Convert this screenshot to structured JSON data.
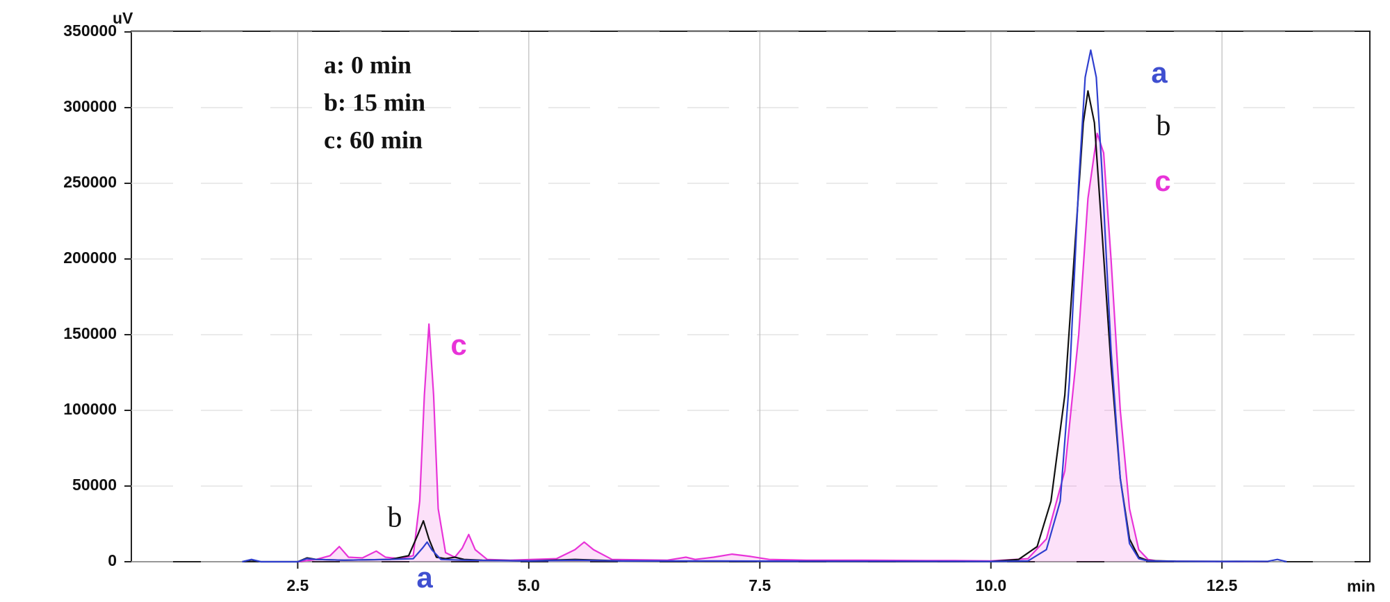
{
  "chart_data": {
    "type": "line",
    "x_label": "min",
    "y_label": "uV",
    "xlim": [
      0.7,
      14.1
    ],
    "ylim": [
      0,
      350000
    ],
    "xticks": [
      2.5,
      {
        "value": 5,
        "label": "5.0"
      },
      7.5,
      {
        "value": 10,
        "label": "10.0"
      },
      12.5
    ],
    "yticks": [
      0,
      50000,
      100000,
      150000,
      200000,
      250000,
      300000,
      350000
    ],
    "grid": true,
    "series": [
      {
        "name": "a: 0 min",
        "color": "#2f3fcf",
        "x": [
          1.9,
          2.0,
          2.1,
          2.5,
          2.6,
          2.7,
          3.0,
          3.5,
          3.75,
          3.85,
          3.9,
          3.95,
          4.05,
          4.3,
          5.0,
          5.5,
          6.0,
          7.0,
          8.0,
          9.0,
          10.0,
          10.4,
          10.6,
          10.75,
          10.85,
          10.95,
          11.02,
          11.08,
          11.14,
          11.2,
          11.3,
          11.4,
          11.5,
          11.6,
          11.7,
          12.0,
          12.5,
          13.0,
          13.1,
          13.2
        ],
        "values": [
          0,
          1500,
          0,
          0,
          2000,
          1500,
          1000,
          1500,
          2000,
          9000,
          13000,
          8000,
          1500,
          1000,
          500,
          1000,
          500,
          500,
          300,
          300,
          200,
          500,
          8000,
          40000,
          120000,
          250000,
          320000,
          338000,
          320000,
          260000,
          140000,
          55000,
          12000,
          2000,
          500,
          300,
          200,
          300,
          1500,
          0
        ]
      },
      {
        "name": "b: 15 min",
        "color": "#111111",
        "x": [
          1.9,
          2.0,
          2.1,
          2.5,
          2.6,
          2.7,
          3.0,
          3.5,
          3.7,
          3.8,
          3.86,
          3.92,
          4.0,
          4.1,
          4.2,
          4.3,
          4.5,
          5.0,
          5.5,
          6.0,
          7.0,
          8.0,
          9.0,
          10.0,
          10.3,
          10.5,
          10.65,
          10.8,
          10.9,
          11.0,
          11.05,
          11.12,
          11.2,
          11.3,
          11.4,
          11.5,
          11.6,
          11.7,
          12.0,
          13.0
        ],
        "values": [
          0,
          1200,
          0,
          0,
          2500,
          1500,
          1000,
          1500,
          4000,
          18000,
          27000,
          15000,
          3000,
          2000,
          3000,
          1500,
          1000,
          500,
          1500,
          500,
          300,
          300,
          200,
          200,
          1500,
          10000,
          40000,
          110000,
          200000,
          290000,
          311000,
          290000,
          220000,
          130000,
          55000,
          15000,
          3000,
          800,
          300,
          200
        ]
      },
      {
        "name": "c: 60 min",
        "color": "#e833d8",
        "x": [
          2.5,
          2.7,
          2.85,
          2.95,
          3.05,
          3.2,
          3.35,
          3.45,
          3.6,
          3.75,
          3.82,
          3.87,
          3.92,
          3.97,
          4.02,
          4.1,
          4.2,
          4.28,
          4.35,
          4.42,
          4.55,
          4.8,
          5.3,
          5.5,
          5.6,
          5.7,
          5.9,
          6.5,
          6.7,
          6.8,
          7.0,
          7.2,
          7.4,
          7.6,
          8.0,
          8.6,
          9.3,
          9.6,
          10.0,
          10.4,
          10.6,
          10.8,
          10.95,
          11.05,
          11.15,
          11.22,
          11.3,
          11.4,
          11.5,
          11.6,
          11.7,
          11.8,
          12.0,
          12.5,
          13.0
        ],
        "values": [
          0,
          1500,
          4000,
          10000,
          3000,
          2500,
          7000,
          3000,
          2000,
          4000,
          40000,
          110000,
          157000,
          110000,
          35000,
          6000,
          3000,
          9000,
          18000,
          8000,
          1500,
          1000,
          2000,
          8000,
          13000,
          8000,
          1500,
          1000,
          3000,
          1500,
          3000,
          5000,
          3500,
          1500,
          1000,
          1000,
          800,
          800,
          500,
          2000,
          15000,
          60000,
          150000,
          240000,
          283000,
          270000,
          200000,
          100000,
          35000,
          8000,
          1500,
          500,
          300,
          200,
          200
        ]
      }
    ],
    "annotations": [
      {
        "text": "a",
        "color": "#3f4fd0"
      },
      {
        "text": "b",
        "color": "#111111"
      },
      {
        "text": "c",
        "color": "#e833d8"
      },
      {
        "text": "c",
        "color": "#e833d8"
      },
      {
        "text": "b",
        "color": "#111111"
      },
      {
        "text": "a",
        "color": "#3f4fd0"
      }
    ]
  }
}
